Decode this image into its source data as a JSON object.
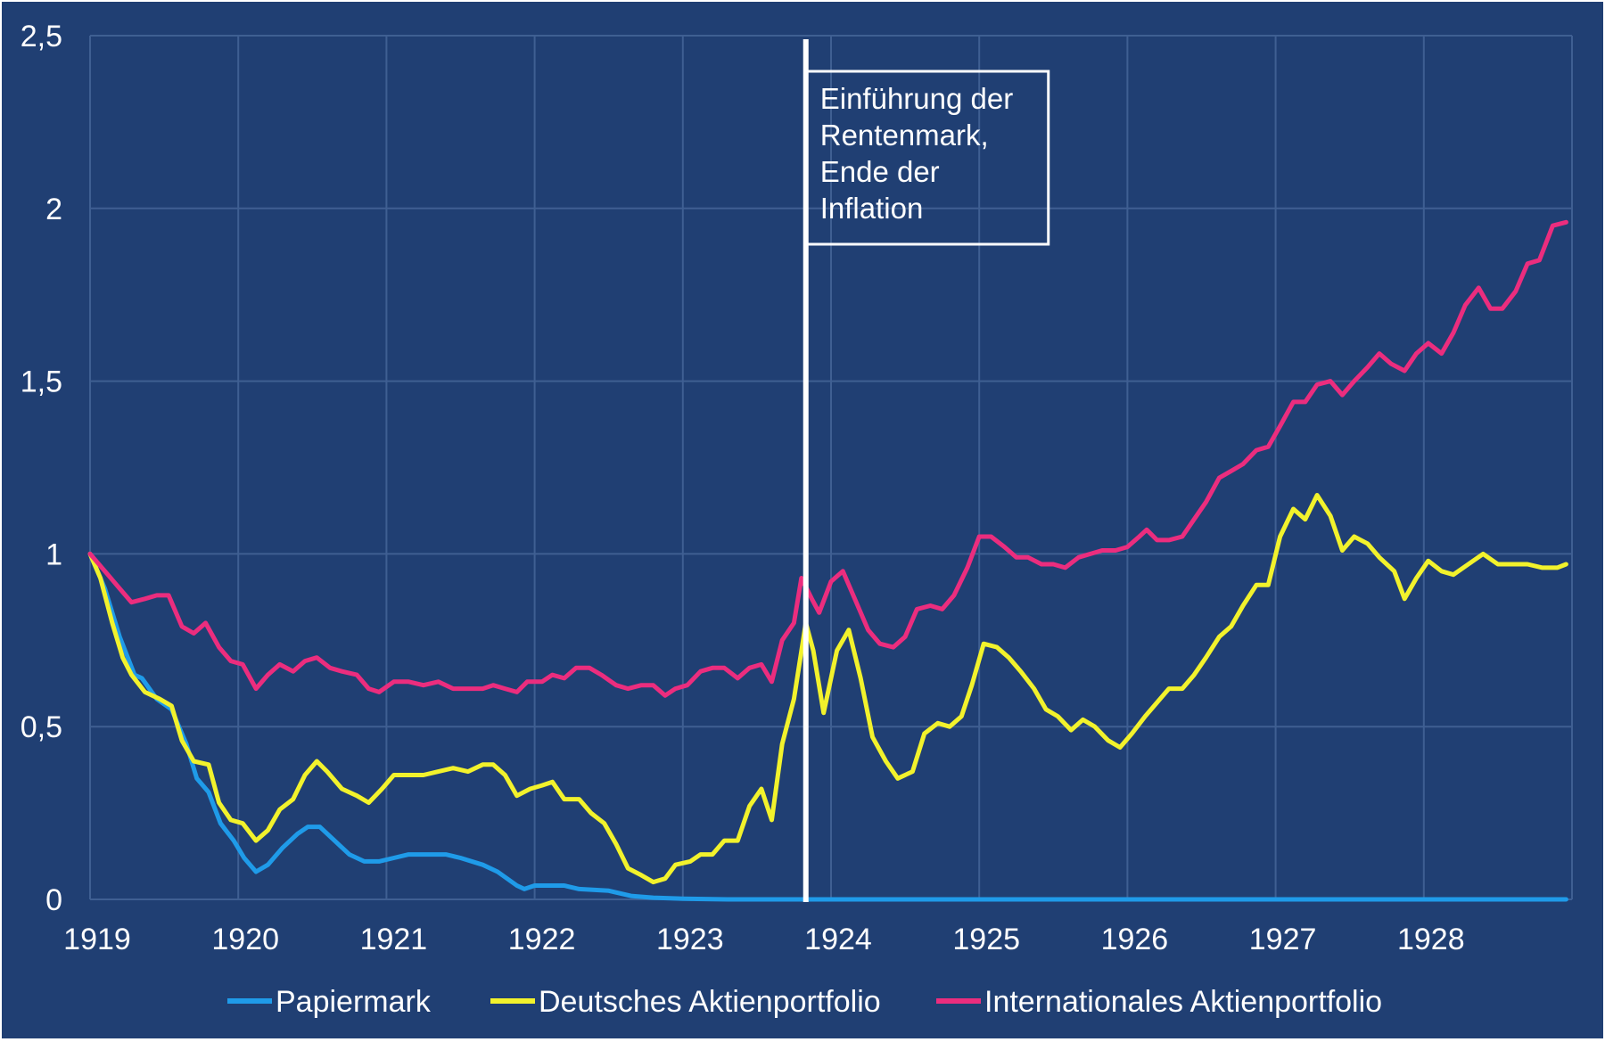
{
  "chart_data": {
    "type": "line",
    "title": "",
    "xlabel": "",
    "ylabel": "",
    "xlim": [
      1919,
      1929
    ],
    "ylim": [
      0,
      2.5
    ],
    "grid": true,
    "legend_position": "bottom",
    "x_ticks": [
      "1919",
      "1920",
      "1921",
      "1922",
      "1923",
      "1924",
      "1925",
      "1926",
      "1927",
      "1928"
    ],
    "y_ticks": [
      "0",
      "0,5",
      "1",
      "1,5",
      "2",
      "2,5"
    ],
    "annotation": {
      "x": 1923.83,
      "lines": [
        "Einführung der",
        "Rentenmark,",
        "Ende der",
        "Inflation"
      ]
    },
    "series": [
      {
        "name": "Papiermark",
        "color": "#1f9be9",
        "points": [
          [
            1919.0,
            1.0
          ],
          [
            1919.1,
            0.9
          ],
          [
            1919.2,
            0.76
          ],
          [
            1919.3,
            0.65
          ],
          [
            1919.35,
            0.64
          ],
          [
            1919.45,
            0.58
          ],
          [
            1919.55,
            0.55
          ],
          [
            1919.65,
            0.45
          ],
          [
            1919.72,
            0.35
          ],
          [
            1919.8,
            0.31
          ],
          [
            1919.88,
            0.22
          ],
          [
            1919.97,
            0.17
          ],
          [
            1920.04,
            0.12
          ],
          [
            1920.12,
            0.08
          ],
          [
            1920.2,
            0.1
          ],
          [
            1920.3,
            0.15
          ],
          [
            1920.4,
            0.19
          ],
          [
            1920.47,
            0.21
          ],
          [
            1920.55,
            0.21
          ],
          [
            1920.65,
            0.17
          ],
          [
            1920.75,
            0.13
          ],
          [
            1920.85,
            0.11
          ],
          [
            1920.95,
            0.11
          ],
          [
            1921.05,
            0.12
          ],
          [
            1921.15,
            0.13
          ],
          [
            1921.3,
            0.13
          ],
          [
            1921.4,
            0.13
          ],
          [
            1921.5,
            0.12
          ],
          [
            1921.65,
            0.1
          ],
          [
            1921.75,
            0.08
          ],
          [
            1921.88,
            0.04
          ],
          [
            1921.93,
            0.03
          ],
          [
            1922.0,
            0.04
          ],
          [
            1922.1,
            0.04
          ],
          [
            1922.2,
            0.04
          ],
          [
            1922.3,
            0.03
          ],
          [
            1922.5,
            0.025
          ],
          [
            1922.65,
            0.01
          ],
          [
            1922.8,
            0.005
          ],
          [
            1923.0,
            0.002
          ],
          [
            1923.3,
            0.0
          ],
          [
            1924.0,
            0.0
          ],
          [
            1926.0,
            0.0
          ],
          [
            1928.0,
            0.0
          ],
          [
            1928.96,
            0.0
          ]
        ]
      },
      {
        "name": "Deutsches Aktienportfolio",
        "color": "#f2f22c",
        "points": [
          [
            1919.0,
            1.0
          ],
          [
            1919.07,
            0.93
          ],
          [
            1919.15,
            0.8
          ],
          [
            1919.22,
            0.7
          ],
          [
            1919.28,
            0.65
          ],
          [
            1919.37,
            0.6
          ],
          [
            1919.47,
            0.58
          ],
          [
            1919.55,
            0.56
          ],
          [
            1919.62,
            0.46
          ],
          [
            1919.7,
            0.4
          ],
          [
            1919.8,
            0.39
          ],
          [
            1919.87,
            0.28
          ],
          [
            1919.95,
            0.23
          ],
          [
            1920.03,
            0.22
          ],
          [
            1920.12,
            0.17
          ],
          [
            1920.2,
            0.2
          ],
          [
            1920.28,
            0.26
          ],
          [
            1920.37,
            0.29
          ],
          [
            1920.45,
            0.36
          ],
          [
            1920.53,
            0.4
          ],
          [
            1920.6,
            0.37
          ],
          [
            1920.7,
            0.32
          ],
          [
            1920.8,
            0.3
          ],
          [
            1920.88,
            0.28
          ],
          [
            1920.97,
            0.32
          ],
          [
            1921.05,
            0.36
          ],
          [
            1921.15,
            0.36
          ],
          [
            1921.25,
            0.36
          ],
          [
            1921.35,
            0.37
          ],
          [
            1921.45,
            0.38
          ],
          [
            1921.55,
            0.37
          ],
          [
            1921.65,
            0.39
          ],
          [
            1921.72,
            0.39
          ],
          [
            1921.8,
            0.36
          ],
          [
            1921.88,
            0.3
          ],
          [
            1921.97,
            0.32
          ],
          [
            1922.05,
            0.33
          ],
          [
            1922.12,
            0.34
          ],
          [
            1922.2,
            0.29
          ],
          [
            1922.3,
            0.29
          ],
          [
            1922.38,
            0.25
          ],
          [
            1922.47,
            0.22
          ],
          [
            1922.55,
            0.16
          ],
          [
            1922.63,
            0.09
          ],
          [
            1922.72,
            0.07
          ],
          [
            1922.8,
            0.05
          ],
          [
            1922.88,
            0.06
          ],
          [
            1922.95,
            0.1
          ],
          [
            1923.05,
            0.11
          ],
          [
            1923.12,
            0.13
          ],
          [
            1923.2,
            0.13
          ],
          [
            1923.28,
            0.17
          ],
          [
            1923.37,
            0.17
          ],
          [
            1923.45,
            0.27
          ],
          [
            1923.53,
            0.32
          ],
          [
            1923.6,
            0.23
          ],
          [
            1923.67,
            0.45
          ],
          [
            1923.75,
            0.58
          ],
          [
            1923.83,
            0.8
          ],
          [
            1923.88,
            0.72
          ],
          [
            1923.95,
            0.54
          ],
          [
            1924.04,
            0.72
          ],
          [
            1924.12,
            0.78
          ],
          [
            1924.2,
            0.64
          ],
          [
            1924.28,
            0.47
          ],
          [
            1924.37,
            0.4
          ],
          [
            1924.45,
            0.35
          ],
          [
            1924.55,
            0.37
          ],
          [
            1924.63,
            0.48
          ],
          [
            1924.72,
            0.51
          ],
          [
            1924.8,
            0.5
          ],
          [
            1924.88,
            0.53
          ],
          [
            1924.95,
            0.62
          ],
          [
            1925.03,
            0.74
          ],
          [
            1925.12,
            0.73
          ],
          [
            1925.2,
            0.7
          ],
          [
            1925.28,
            0.66
          ],
          [
            1925.37,
            0.61
          ],
          [
            1925.45,
            0.55
          ],
          [
            1925.53,
            0.53
          ],
          [
            1925.62,
            0.49
          ],
          [
            1925.7,
            0.52
          ],
          [
            1925.78,
            0.5
          ],
          [
            1925.87,
            0.46
          ],
          [
            1925.95,
            0.44
          ],
          [
            1926.03,
            0.48
          ],
          [
            1926.12,
            0.53
          ],
          [
            1926.2,
            0.57
          ],
          [
            1926.28,
            0.61
          ],
          [
            1926.37,
            0.61
          ],
          [
            1926.45,
            0.65
          ],
          [
            1926.53,
            0.7
          ],
          [
            1926.62,
            0.76
          ],
          [
            1926.7,
            0.79
          ],
          [
            1926.78,
            0.85
          ],
          [
            1926.87,
            0.91
          ],
          [
            1926.95,
            0.91
          ],
          [
            1927.03,
            1.05
          ],
          [
            1927.12,
            1.13
          ],
          [
            1927.2,
            1.1
          ],
          [
            1927.28,
            1.17
          ],
          [
            1927.37,
            1.11
          ],
          [
            1927.45,
            1.01
          ],
          [
            1927.53,
            1.05
          ],
          [
            1927.62,
            1.03
          ],
          [
            1927.7,
            0.99
          ],
          [
            1927.8,
            0.95
          ],
          [
            1927.87,
            0.87
          ],
          [
            1927.95,
            0.93
          ],
          [
            1928.03,
            0.98
          ],
          [
            1928.12,
            0.95
          ],
          [
            1928.2,
            0.94
          ],
          [
            1928.3,
            0.97
          ],
          [
            1928.4,
            1.0
          ],
          [
            1928.5,
            0.97
          ],
          [
            1928.6,
            0.97
          ],
          [
            1928.7,
            0.97
          ],
          [
            1928.8,
            0.96
          ],
          [
            1928.9,
            0.96
          ],
          [
            1928.96,
            0.97
          ]
        ]
      },
      {
        "name": "Internationales Aktienportfolio",
        "color": "#eb2d7e",
        "points": [
          [
            1919.0,
            1.0
          ],
          [
            1919.1,
            0.95
          ],
          [
            1919.2,
            0.9
          ],
          [
            1919.28,
            0.86
          ],
          [
            1919.37,
            0.87
          ],
          [
            1919.45,
            0.88
          ],
          [
            1919.53,
            0.88
          ],
          [
            1919.62,
            0.79
          ],
          [
            1919.7,
            0.77
          ],
          [
            1919.78,
            0.8
          ],
          [
            1919.87,
            0.73
          ],
          [
            1919.95,
            0.69
          ],
          [
            1920.03,
            0.68
          ],
          [
            1920.12,
            0.61
          ],
          [
            1920.2,
            0.65
          ],
          [
            1920.28,
            0.68
          ],
          [
            1920.37,
            0.66
          ],
          [
            1920.45,
            0.69
          ],
          [
            1920.53,
            0.7
          ],
          [
            1920.62,
            0.67
          ],
          [
            1920.7,
            0.66
          ],
          [
            1920.8,
            0.65
          ],
          [
            1920.88,
            0.61
          ],
          [
            1920.95,
            0.6
          ],
          [
            1921.05,
            0.63
          ],
          [
            1921.15,
            0.63
          ],
          [
            1921.25,
            0.62
          ],
          [
            1921.35,
            0.63
          ],
          [
            1921.45,
            0.61
          ],
          [
            1921.55,
            0.61
          ],
          [
            1921.65,
            0.61
          ],
          [
            1921.72,
            0.62
          ],
          [
            1921.8,
            0.61
          ],
          [
            1921.88,
            0.6
          ],
          [
            1921.95,
            0.63
          ],
          [
            1922.05,
            0.63
          ],
          [
            1922.12,
            0.65
          ],
          [
            1922.2,
            0.64
          ],
          [
            1922.28,
            0.67
          ],
          [
            1922.37,
            0.67
          ],
          [
            1922.45,
            0.65
          ],
          [
            1922.55,
            0.62
          ],
          [
            1922.63,
            0.61
          ],
          [
            1922.72,
            0.62
          ],
          [
            1922.8,
            0.62
          ],
          [
            1922.88,
            0.59
          ],
          [
            1922.95,
            0.61
          ],
          [
            1923.03,
            0.62
          ],
          [
            1923.12,
            0.66
          ],
          [
            1923.2,
            0.67
          ],
          [
            1923.28,
            0.67
          ],
          [
            1923.37,
            0.64
          ],
          [
            1923.45,
            0.67
          ],
          [
            1923.53,
            0.68
          ],
          [
            1923.6,
            0.63
          ],
          [
            1923.67,
            0.75
          ],
          [
            1923.75,
            0.8
          ],
          [
            1923.8,
            0.93
          ],
          [
            1923.87,
            0.87
          ],
          [
            1923.92,
            0.83
          ],
          [
            1924.0,
            0.92
          ],
          [
            1924.08,
            0.95
          ],
          [
            1924.17,
            0.86
          ],
          [
            1924.25,
            0.78
          ],
          [
            1924.33,
            0.74
          ],
          [
            1924.42,
            0.73
          ],
          [
            1924.5,
            0.76
          ],
          [
            1924.58,
            0.84
          ],
          [
            1924.67,
            0.85
          ],
          [
            1924.75,
            0.84
          ],
          [
            1924.83,
            0.88
          ],
          [
            1924.92,
            0.96
          ],
          [
            1925.0,
            1.05
          ],
          [
            1925.08,
            1.05
          ],
          [
            1925.17,
            1.02
          ],
          [
            1925.25,
            0.99
          ],
          [
            1925.33,
            0.99
          ],
          [
            1925.42,
            0.97
          ],
          [
            1925.5,
            0.97
          ],
          [
            1925.58,
            0.96
          ],
          [
            1925.67,
            0.99
          ],
          [
            1925.75,
            1.0
          ],
          [
            1925.83,
            1.01
          ],
          [
            1925.92,
            1.01
          ],
          [
            1926.0,
            1.02
          ],
          [
            1926.08,
            1.05
          ],
          [
            1926.13,
            1.07
          ],
          [
            1926.2,
            1.04
          ],
          [
            1926.28,
            1.04
          ],
          [
            1926.37,
            1.05
          ],
          [
            1926.45,
            1.1
          ],
          [
            1926.53,
            1.15
          ],
          [
            1926.62,
            1.22
          ],
          [
            1926.7,
            1.24
          ],
          [
            1926.78,
            1.26
          ],
          [
            1926.87,
            1.3
          ],
          [
            1926.95,
            1.31
          ],
          [
            1927.03,
            1.37
          ],
          [
            1927.12,
            1.44
          ],
          [
            1927.2,
            1.44
          ],
          [
            1927.28,
            1.49
          ],
          [
            1927.37,
            1.5
          ],
          [
            1927.45,
            1.46
          ],
          [
            1927.53,
            1.5
          ],
          [
            1927.62,
            1.54
          ],
          [
            1927.7,
            1.58
          ],
          [
            1927.78,
            1.55
          ],
          [
            1927.87,
            1.53
          ],
          [
            1927.95,
            1.58
          ],
          [
            1928.03,
            1.61
          ],
          [
            1928.12,
            1.58
          ],
          [
            1928.2,
            1.64
          ],
          [
            1928.28,
            1.72
          ],
          [
            1928.37,
            1.77
          ],
          [
            1928.45,
            1.71
          ],
          [
            1928.53,
            1.71
          ],
          [
            1928.62,
            1.76
          ],
          [
            1928.7,
            1.84
          ],
          [
            1928.78,
            1.85
          ],
          [
            1928.87,
            1.95
          ],
          [
            1928.96,
            1.96
          ]
        ]
      }
    ]
  }
}
